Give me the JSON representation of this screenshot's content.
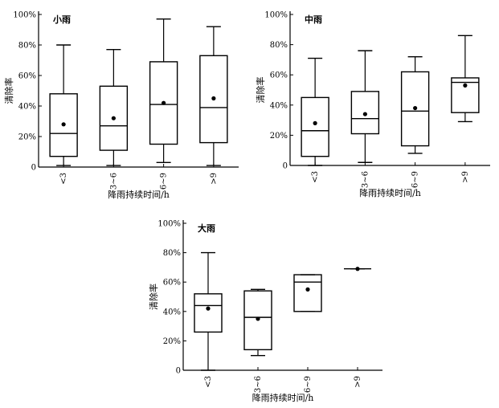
{
  "chart_data": [
    {
      "type": "box",
      "title": "小雨",
      "xlabel": "降雨持续时间/h",
      "ylabel": "清除率",
      "ylim": [
        0,
        100
      ],
      "yticks": [
        "0",
        "20%",
        "40%",
        "60%",
        "80%",
        "100%"
      ],
      "categories": [
        "<3",
        "3~6",
        "6~9",
        ">9"
      ],
      "boxes": [
        {
          "min": 1,
          "q1": 7,
          "median": 22,
          "q3": 48,
          "max": 80,
          "mean": 28
        },
        {
          "min": 1,
          "q1": 11,
          "median": 27,
          "q3": 53,
          "max": 77,
          "mean": 32
        },
        {
          "min": 3,
          "q1": 15,
          "median": 41,
          "q3": 69,
          "max": 97,
          "mean": 42
        },
        {
          "min": 1,
          "q1": 16,
          "median": 39,
          "q3": 73,
          "max": 92,
          "mean": 45
        }
      ]
    },
    {
      "type": "box",
      "title": "中雨",
      "xlabel": "降雨持续时间/h",
      "ylabel": "清除率",
      "ylim": [
        0,
        100
      ],
      "yticks": [
        "0",
        "20%",
        "40%",
        "60%",
        "80%",
        "100%"
      ],
      "categories": [
        "<3",
        "3~6",
        "6~9",
        ">9"
      ],
      "boxes": [
        {
          "min": 0,
          "q1": 6,
          "median": 23,
          "q3": 45,
          "max": 71,
          "mean": 28
        },
        {
          "min": 2,
          "q1": 21,
          "median": 31,
          "q3": 49,
          "max": 76,
          "mean": 34
        },
        {
          "min": 8,
          "q1": 13,
          "median": 36,
          "q3": 62,
          "max": 72,
          "mean": 38
        },
        {
          "min": 29,
          "q1": 35,
          "median": 55,
          "q3": 58,
          "max": 86,
          "mean": 53
        }
      ]
    },
    {
      "type": "box",
      "title": "大雨",
      "xlabel": "降雨持续时间/h",
      "ylabel": "清除率",
      "ylim": [
        0,
        100
      ],
      "yticks": [
        "0",
        "20%",
        "40%",
        "60%",
        "80%",
        "100%"
      ],
      "categories": [
        "<3",
        "3~6",
        "6~9",
        ">9"
      ],
      "boxes": [
        {
          "min": 0,
          "q1": 26,
          "median": 44,
          "q3": 52,
          "max": 80,
          "mean": 42
        },
        {
          "min": 10,
          "q1": 14,
          "median": 36,
          "q3": 54,
          "max": 55,
          "mean": 35
        },
        {
          "min": 40,
          "q1": 40,
          "median": 60,
          "q3": 65,
          "max": 65,
          "mean": 55
        },
        {
          "min": 69,
          "q1": 69,
          "median": 69,
          "q3": 69,
          "max": 69,
          "mean": 69
        }
      ]
    }
  ]
}
